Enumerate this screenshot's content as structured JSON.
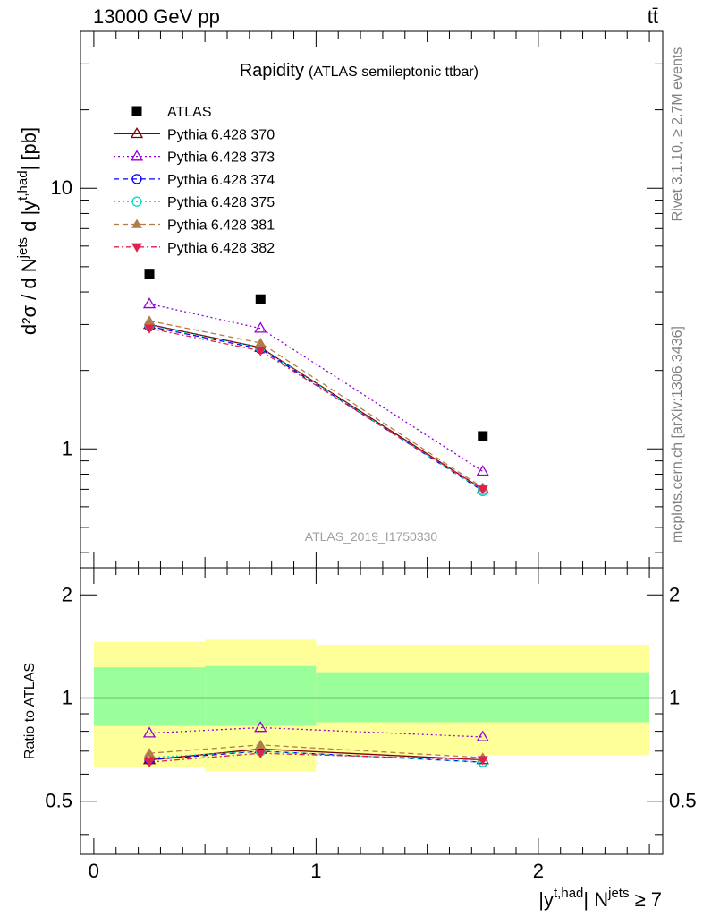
{
  "header": {
    "energy_label": "13000 GeV pp",
    "process_label": "tt̄"
  },
  "side": {
    "rivet_label": "Rivet 3.1.10, ≥ 2.7M events",
    "mcplots_label": "mcplots.cern.ch [arXiv:1306.3436]"
  },
  "chart_data": {
    "type": "line",
    "title": "Rapidity",
    "subtitle": "(ATLAS semileptonic ttbar)",
    "watermark": "ATLAS_2019_I1750330",
    "ylabel": {
      "base": "d²σ / d N",
      "sup1": "jets",
      "mid": " d |y",
      "sup2": "t,had",
      "end": "| [pb]"
    },
    "xlabel": {
      "base": "|y",
      "sup1": "t,had",
      "mid": "| N",
      "sup2": "jets",
      "end": " ≥ 7"
    },
    "ratio_ylabel": "Ratio to ATLAS",
    "x_range": [
      -0.06,
      2.56
    ],
    "y_range_main": [
      0.35,
      40
    ],
    "y_scale_main": "log",
    "y_ticks_main": [
      {
        "value": 1,
        "label": "1"
      },
      {
        "value": 10,
        "label": "10"
      }
    ],
    "y_range_ratio": [
      0.35,
      2.4
    ],
    "y_scale_ratio": "log",
    "y_ticks_ratio": [
      {
        "value": 0.5,
        "label": "0.5"
      },
      {
        "value": 1,
        "label": "1"
      },
      {
        "value": 2,
        "label": "2"
      }
    ],
    "x_ticks": [
      {
        "value": 0,
        "label": "0"
      },
      {
        "value": 1,
        "label": "1"
      },
      {
        "value": 2,
        "label": "2"
      }
    ],
    "bins": [
      [
        0,
        0.5
      ],
      [
        0.5,
        1.0
      ],
      [
        1.0,
        2.5
      ]
    ],
    "x": [
      0.25,
      0.75,
      1.75
    ],
    "data": {
      "name": "ATLAS",
      "values": [
        4.7,
        3.75,
        1.12
      ],
      "color": "#000000"
    },
    "bands": {
      "stat": [
        [
          0.83,
          1.23
        ],
        [
          0.83,
          1.24
        ],
        [
          0.85,
          1.19
        ]
      ],
      "total": [
        [
          0.63,
          1.46
        ],
        [
          0.61,
          1.48
        ],
        [
          0.68,
          1.43
        ]
      ],
      "stat_color": "#9aff9a",
      "total_color": "#ffff99"
    },
    "series": [
      {
        "name": "Pythia 6.428 370",
        "values": [
          3.0,
          2.45,
          0.7
        ],
        "ratio": [
          0.66,
          0.71,
          0.66
        ],
        "color": "#800000",
        "dash": "",
        "marker": "triangle-open"
      },
      {
        "name": "Pythia 6.428 373",
        "values": [
          3.6,
          2.9,
          0.82
        ],
        "ratio": [
          0.79,
          0.82,
          0.77
        ],
        "color": "#9400d3",
        "dash": "2,3",
        "marker": "triangle-open"
      },
      {
        "name": "Pythia 6.428 374",
        "values": [
          2.95,
          2.42,
          0.69
        ],
        "ratio": [
          0.66,
          0.7,
          0.65
        ],
        "color": "#0000ff",
        "dash": "6,4",
        "marker": "circle-open"
      },
      {
        "name": "Pythia 6.428 375",
        "values": [
          2.98,
          2.44,
          0.69
        ],
        "ratio": [
          0.67,
          0.7,
          0.65
        ],
        "color": "#00e0c0",
        "dash": "2,3",
        "marker": "circle-open"
      },
      {
        "name": "Pythia 6.428 381",
        "values": [
          3.1,
          2.55,
          0.71
        ],
        "ratio": [
          0.69,
          0.73,
          0.67
        ],
        "color": "#b07d4a",
        "dash": "6,4",
        "marker": "triangle-filled"
      },
      {
        "name": "Pythia 6.428 382",
        "values": [
          2.9,
          2.38,
          0.7
        ],
        "ratio": [
          0.65,
          0.69,
          0.66
        ],
        "color": "#e0204c",
        "dash": "6,3,2,3",
        "marker": "triangle-down-filled"
      }
    ],
    "legend_position": "top-left"
  }
}
